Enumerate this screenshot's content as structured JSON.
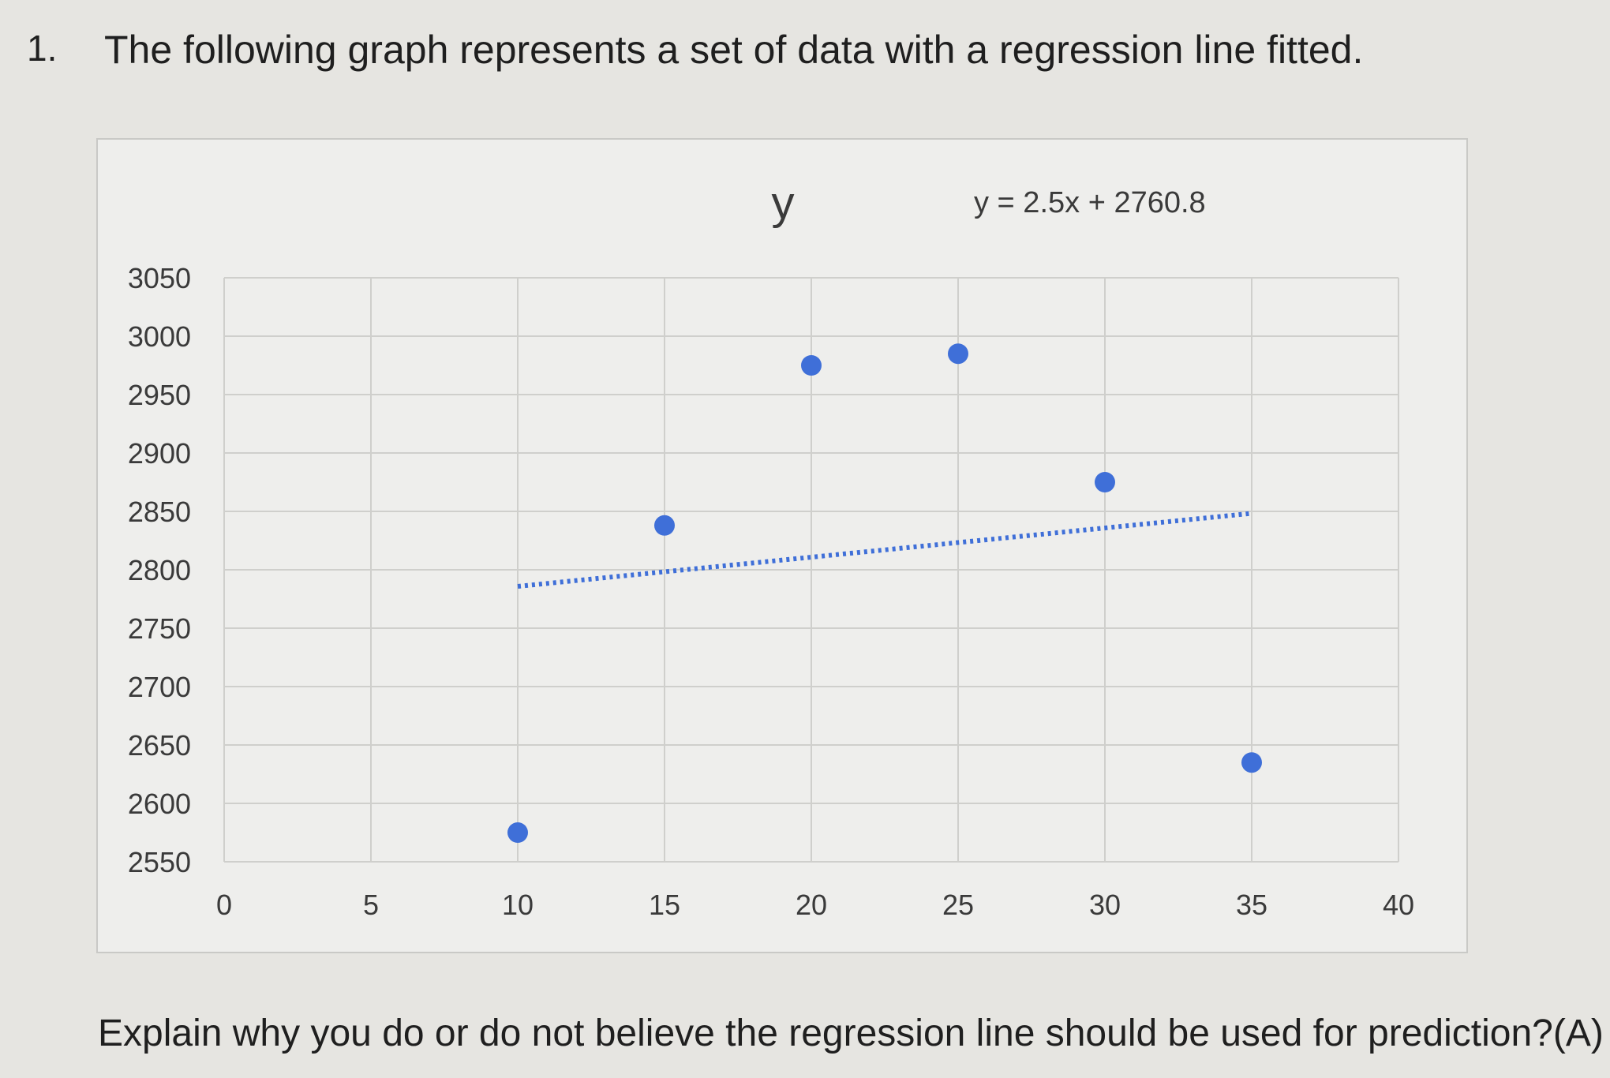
{
  "question": {
    "number": "1.",
    "text": "The following graph represents a set of data with a regression line fitted."
  },
  "prompt": "Explain why you do or do not believe the regression line should be used for prediction?(A)",
  "colors": {
    "point": "#3f6fd8",
    "trendline": "#3f6fd8",
    "grid": "#cfcfcc"
  },
  "chart_data": {
    "type": "scatter",
    "title": "y",
    "equation": "y = 2.5x + 2760.8",
    "xlim": [
      0,
      40
    ],
    "ylim": [
      2550,
      3050
    ],
    "xticks": [
      0,
      5,
      10,
      15,
      20,
      25,
      30,
      35,
      40
    ],
    "yticks": [
      2550,
      2600,
      2650,
      2700,
      2750,
      2800,
      2850,
      2900,
      2950,
      3000,
      3050
    ],
    "grid": true,
    "points": [
      {
        "x": 10,
        "y": 2575
      },
      {
        "x": 15,
        "y": 2838
      },
      {
        "x": 20,
        "y": 2975
      },
      {
        "x": 25,
        "y": 2985
      },
      {
        "x": 30,
        "y": 2875
      },
      {
        "x": 35,
        "y": 2635
      }
    ],
    "trendline": {
      "slope": 2.5,
      "intercept": 2760.8,
      "x_range": [
        10,
        35
      ],
      "style": "dotted"
    }
  }
}
